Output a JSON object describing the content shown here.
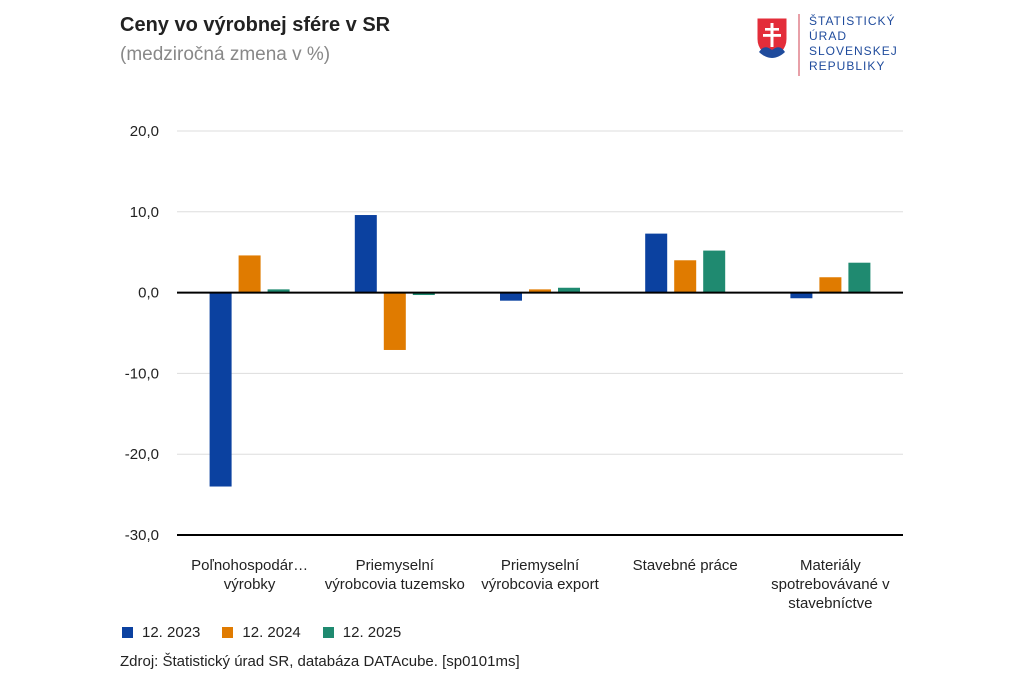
{
  "header": {
    "title": "Ceny vo výrobnej sfére v SR",
    "subtitle": "(medziročná zmena v %)"
  },
  "logo": {
    "lines": [
      "ŠTATISTICKÝ",
      "ÚRAD",
      "SLOVENSKEJ",
      "REPUBLIKY"
    ]
  },
  "colors": {
    "series_2023": "#0b41a0",
    "series_2024": "#e07b00",
    "series_2025": "#1f8a70",
    "brand_blue": "#1f4b9c"
  },
  "chart_data": {
    "type": "bar",
    "title": "Ceny vo výrobnej sfére v SR",
    "subtitle": "(medziročná zmena v %)",
    "categories": [
      "Poľnohospodár… výrobky",
      "Priemyselní výrobcovia tuzemsko",
      "Priemyselní výrobcovia export",
      "Stavebné práce",
      "Materiály spotrebovávané v stavebníctve"
    ],
    "series": [
      {
        "name": "12. 2023",
        "values": [
          -24.0,
          9.6,
          -1.0,
          7.3,
          -0.7
        ]
      },
      {
        "name": "12. 2024",
        "values": [
          4.6,
          -7.1,
          0.4,
          4.0,
          1.9
        ]
      },
      {
        "name": "12. 2025",
        "values": [
          0.4,
          -0.3,
          0.6,
          5.2,
          3.7
        ]
      }
    ],
    "ylim": [
      -30,
      20
    ],
    "yticks": [
      "20,0",
      "10,0",
      "0,0",
      "-10,0",
      "-20,0",
      "-30,0"
    ],
    "ytick_values": [
      20,
      10,
      0,
      -10,
      -20,
      -30
    ],
    "grid": true,
    "legend_position": "bottom-left"
  },
  "source": "Zdroj: Štatistický úrad SR, databáza DATAcube. [sp0101ms]"
}
